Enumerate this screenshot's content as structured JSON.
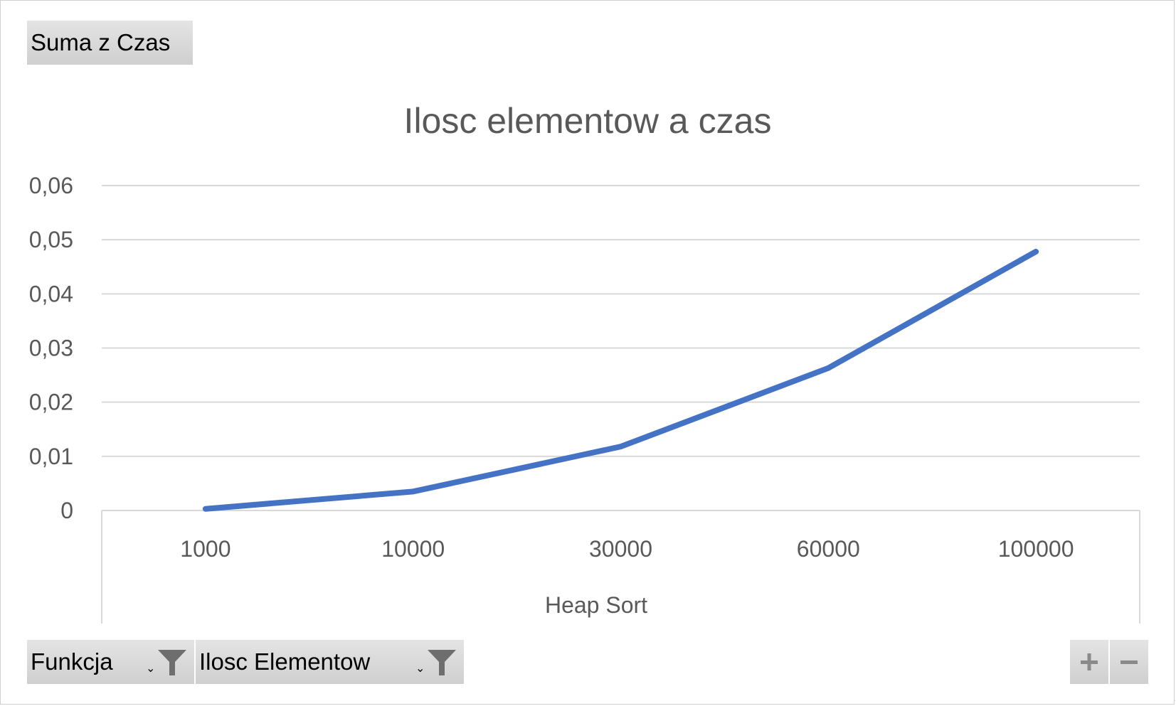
{
  "pivot": {
    "value_field": "Suma z Czas",
    "axis_fields": [
      {
        "label": "Funkcja"
      },
      {
        "label": "Ilosc Elementow"
      }
    ],
    "zoom_in_label": "+",
    "zoom_out_label": "−"
  },
  "chart_data": {
    "type": "line",
    "title": "Ilosc elementow a czas",
    "categories": [
      "1000",
      "10000",
      "30000",
      "60000",
      "100000"
    ],
    "group_label": "Heap Sort",
    "series": [
      {
        "values": [
          0.0003,
          0.0035,
          0.0118,
          0.0263,
          0.0478
        ],
        "color": "#4472c4"
      }
    ],
    "yticks": [
      "0",
      "0,01",
      "0,02",
      "0,03",
      "0,04",
      "0,05",
      "0,06"
    ],
    "ylim": [
      0,
      0.06
    ],
    "grid": true,
    "legend": "none"
  }
}
